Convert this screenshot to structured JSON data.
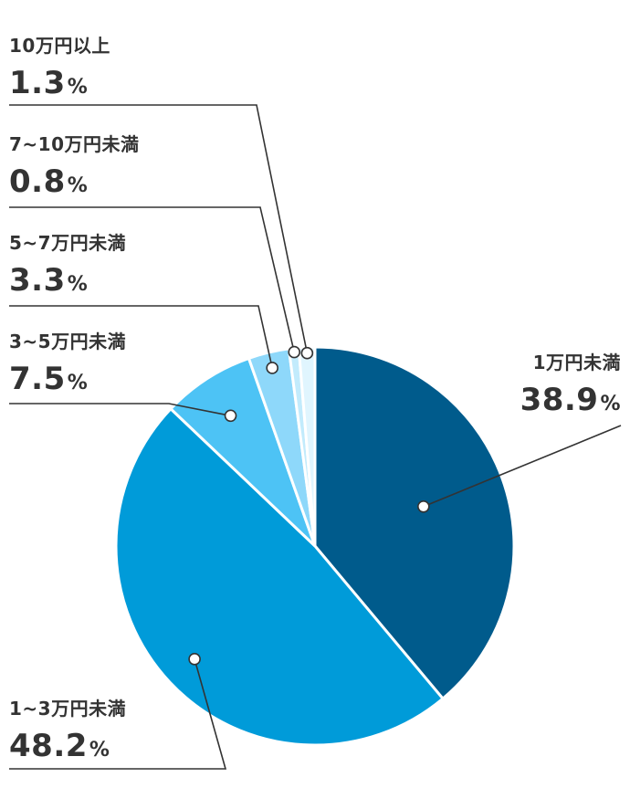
{
  "chart_data": {
    "type": "pie",
    "unit": "%",
    "slices": [
      {
        "label": "1万円未満",
        "value": 38.9,
        "value_text": "38.9",
        "color": "#005b8c"
      },
      {
        "label": "1~3万円未満",
        "value": 48.2,
        "value_text": "48.2",
        "color": "#009bd9"
      },
      {
        "label": "3~5万円未満",
        "value": 7.5,
        "value_text": "7.5",
        "color": "#4dc3f5"
      },
      {
        "label": "5~7万円未満",
        "value": 3.3,
        "value_text": "3.3",
        "color": "#8ed8fa"
      },
      {
        "label": "7~10万円未満",
        "value": 0.8,
        "value_text": "0.8",
        "color": "#c2ebfc"
      },
      {
        "label": "10万円以上",
        "value": 1.3,
        "value_text": "1.3",
        "color": "#e0f5fe"
      }
    ]
  }
}
